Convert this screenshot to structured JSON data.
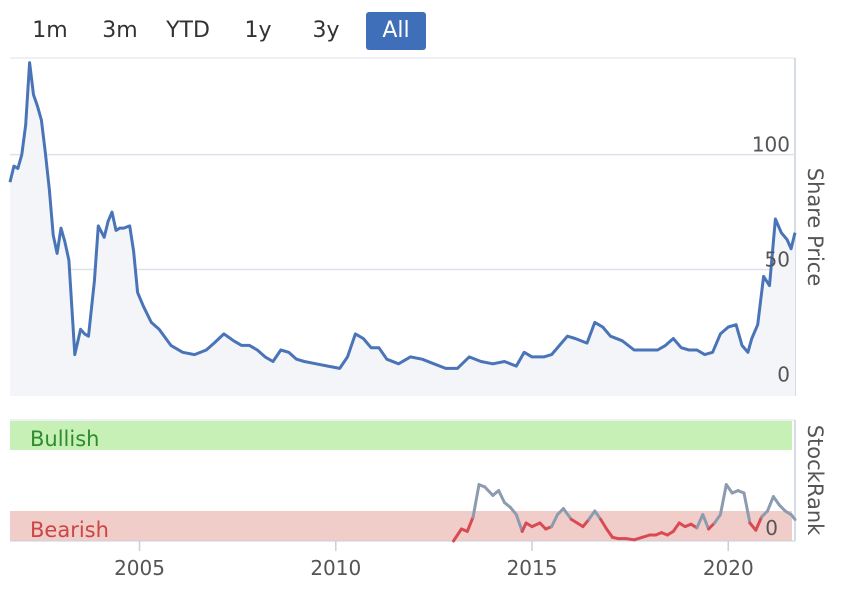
{
  "range_selector": {
    "buttons": [
      {
        "label": "1m"
      },
      {
        "label": "3m"
      },
      {
        "label": "YTD"
      },
      {
        "label": "1y"
      },
      {
        "label": "3y"
      },
      {
        "label": "All"
      }
    ],
    "active": "All"
  },
  "colors": {
    "price_line": "#4a74b8",
    "price_fill": "#f3f5f9",
    "rank_line": "#8c9bb0",
    "bearish_line": "#d94a55",
    "bullish_band": "#c6f0b6",
    "bearish_band": "#f0cdc8",
    "bullish_text": "#2e8b2e",
    "bearish_text": "#cc4444",
    "grid": "#dde2ea"
  },
  "chart_data": [
    {
      "type": "line",
      "title": "",
      "ylabel": "Share Price",
      "yticks": [
        0,
        50,
        100
      ],
      "ylim": [
        -5,
        142
      ],
      "xlim": [
        2001.7,
        2021.7
      ],
      "grid": true,
      "series": [
        {
          "x": [
            2001.7,
            2001.8,
            2001.9,
            2002.0,
            2002.1,
            2002.2,
            2002.3,
            2002.4,
            2002.5,
            2002.6,
            2002.7,
            2002.8,
            2002.9,
            2003.0,
            2003.1,
            2003.2,
            2003.35,
            2003.5,
            2003.6,
            2003.7,
            2003.85,
            2003.95,
            2004.1,
            2004.2,
            2004.3,
            2004.4,
            2004.5,
            2004.6,
            2004.75,
            2004.85,
            2004.95,
            2005.1,
            2005.3,
            2005.5,
            2005.8,
            2006.1,
            2006.4,
            2006.7,
            2006.9,
            2007.15,
            2007.4,
            2007.6,
            2007.8,
            2008.0,
            2008.2,
            2008.4,
            2008.6,
            2008.8,
            2009.0,
            2009.2,
            2009.5,
            2009.8,
            2010.1,
            2010.3,
            2010.5,
            2010.7,
            2010.9,
            2011.1,
            2011.3,
            2011.6,
            2011.9,
            2012.2,
            2012.5,
            2012.8,
            2013.1,
            2013.4,
            2013.7,
            2014.0,
            2014.3,
            2014.6,
            2014.8,
            2015.0,
            2015.3,
            2015.5,
            2015.7,
            2015.9,
            2016.1,
            2016.4,
            2016.6,
            2016.8,
            2017.0,
            2017.3,
            2017.6,
            2017.9,
            2018.2,
            2018.4,
            2018.6,
            2018.8,
            2019.0,
            2019.2,
            2019.4,
            2019.6,
            2019.8,
            2020.0,
            2020.2,
            2020.35,
            2020.5,
            2020.6,
            2020.75,
            2020.9,
            2021.05,
            2021.2,
            2021.35,
            2021.5,
            2021.6,
            2021.7
          ],
          "values": [
            88,
            95,
            94,
            100,
            113,
            140,
            126,
            121,
            115,
            101,
            85,
            65,
            57,
            68,
            62,
            54,
            13,
            24,
            22,
            21,
            45,
            69,
            64,
            71,
            75,
            67,
            68,
            68,
            69,
            58,
            40,
            34,
            27,
            24,
            17,
            14,
            13,
            15,
            18,
            22,
            19,
            17,
            17,
            15,
            12,
            10,
            15,
            14,
            11,
            10,
            9,
            8,
            7,
            12,
            22,
            20,
            16,
            16,
            11,
            9,
            12,
            11,
            9,
            7,
            7,
            12,
            10,
            9,
            10,
            8,
            14,
            12,
            12,
            13,
            17,
            21,
            20,
            18,
            27,
            25,
            21,
            19,
            15,
            15,
            15,
            17,
            20,
            16,
            15,
            15,
            13,
            14,
            22,
            25,
            26,
            17,
            14,
            20,
            26,
            47,
            43,
            72,
            66,
            63,
            59,
            66
          ]
        }
      ]
    },
    {
      "type": "line",
      "ylabel": "StockRank",
      "yticks": [
        0
      ],
      "ylim": [
        0,
        100
      ],
      "xlim": [
        2001.7,
        2021.7
      ],
      "xticks": [
        "2005",
        "2010",
        "2015",
        "2020"
      ],
      "bands": [
        {
          "label": "Bullish",
          "from": 80,
          "to": 100
        },
        {
          "label": "Bearish",
          "from": 0,
          "to": 20
        }
      ],
      "series": [
        {
          "x": [
            2013.0,
            2013.2,
            2013.35,
            2013.5,
            2013.65,
            2013.8,
            2014.0,
            2014.15,
            2014.3,
            2014.45,
            2014.6,
            2014.75,
            2014.85,
            2015.0,
            2015.2,
            2015.35,
            2015.5,
            2015.65,
            2015.8,
            2016.0,
            2016.15,
            2016.3,
            2016.45,
            2016.6,
            2016.75,
            2016.9,
            2017.05,
            2017.2,
            2017.4,
            2017.6,
            2017.8,
            2018.0,
            2018.15,
            2018.3,
            2018.45,
            2018.6,
            2018.75,
            2018.9,
            2019.05,
            2019.2,
            2019.35,
            2019.5,
            2019.65,
            2019.8,
            2019.95,
            2020.1,
            2020.25,
            2020.4,
            2020.55,
            2020.7,
            2020.85,
            2021.0,
            2021.15,
            2021.3,
            2021.45,
            2021.6,
            2021.7
          ],
          "values": [
            0,
            10,
            8,
            20,
            47,
            45,
            38,
            42,
            32,
            28,
            22,
            8,
            15,
            12,
            15,
            10,
            12,
            22,
            27,
            18,
            15,
            12,
            18,
            25,
            18,
            10,
            3,
            2,
            2,
            1,
            3,
            5,
            5,
            7,
            5,
            8,
            15,
            12,
            14,
            11,
            22,
            10,
            15,
            22,
            47,
            40,
            42,
            40,
            15,
            9,
            20,
            25,
            37,
            30,
            25,
            22,
            18
          ]
        }
      ]
    }
  ]
}
